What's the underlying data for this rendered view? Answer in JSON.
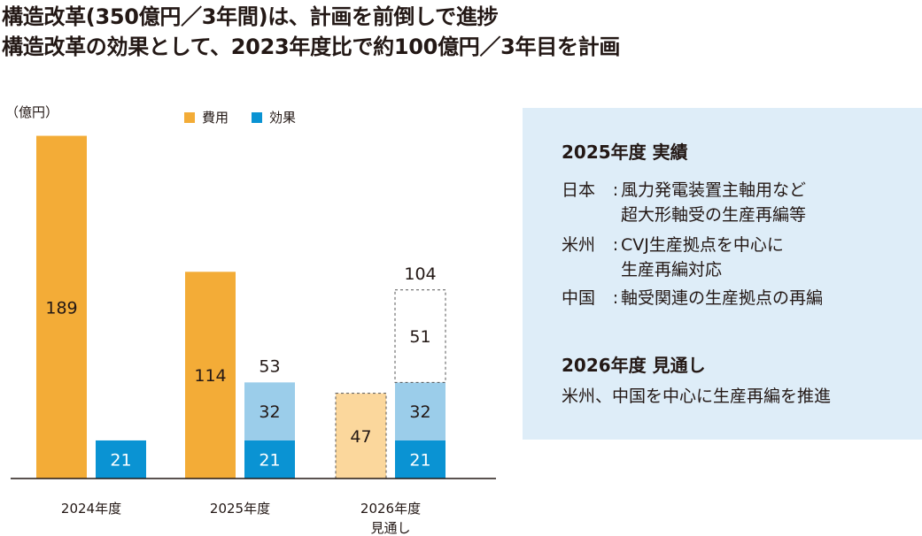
{
  "headline": [
    "構造改革(350億円／3年間)は、計画を前倒しで進捗",
    "構造改革の効果として、2023年度比で約100億円／3年目を計画"
  ],
  "unit_label": "（億円）",
  "legend": [
    {
      "label": "費用",
      "color": "#f3ac37"
    },
    {
      "label": "効果",
      "color": "#0a93d3"
    }
  ],
  "chart_data": {
    "type": "bar",
    "subtype": "stacked",
    "categories": [
      "2024年度",
      "2025年度",
      "2026年度\n見通し"
    ],
    "ylabel": "（億円）",
    "ylim": [
      0,
      195
    ],
    "grid": false,
    "legend_position": "top",
    "series": [
      {
        "name": "費用",
        "values": [
          189,
          114,
          47
        ],
        "color": "#f3ac37",
        "note": "2026年度 value shown as forecast (light fill, dashed outline)"
      },
      {
        "name": "効果",
        "values": [
          21,
          53,
          104
        ],
        "color": "#0a93d3",
        "segments": [
          [
            21
          ],
          [
            21,
            32
          ],
          [
            21,
            32,
            51
          ]
        ],
        "segment_colors": [
          "#0a93d3",
          "#9bcdea",
          "#ffffff"
        ],
        "totals": [
          null,
          53,
          104
        ]
      }
    ],
    "forecast_fill": "#fbd79c",
    "category_lines": [
      [
        "2024年度"
      ],
      [
        "2025年度"
      ],
      [
        "2026年度",
        "見通し"
      ]
    ]
  },
  "panel": {
    "section1_title": "2025年度 実績",
    "rows": [
      {
        "label": "日本",
        "lines": [
          "風力発電装置主軸用など",
          "超大形軸受の生産再編等"
        ]
      },
      {
        "label": "米州",
        "lines": [
          "CVJ生産拠点を中心に",
          "生産再編対応"
        ]
      },
      {
        "label": "中国",
        "lines": [
          "軸受関連の生産拠点の再編"
        ]
      }
    ],
    "section2_title": "2026年度 見通し",
    "section2_text": "米州、中国を中心に生産再編を推進",
    "background": "#deedf8"
  }
}
